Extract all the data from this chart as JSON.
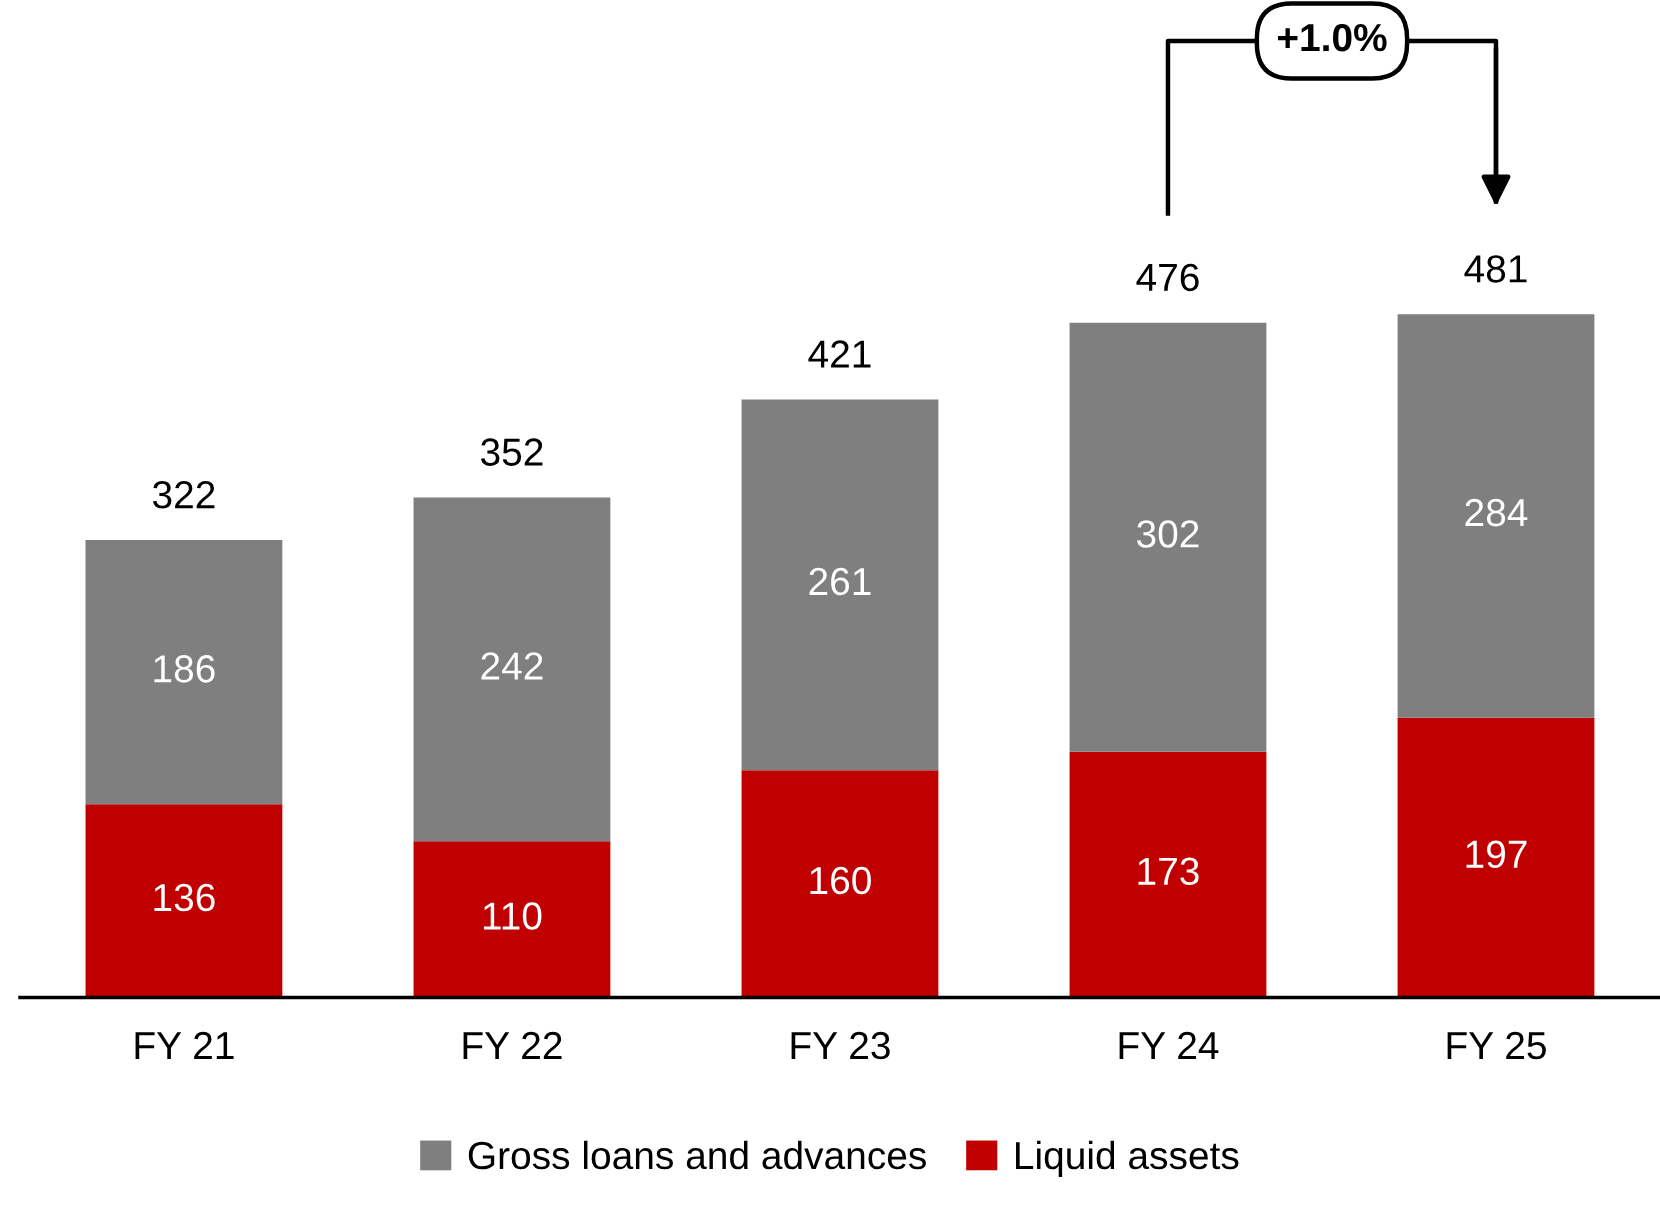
{
  "chart_data": {
    "type": "bar",
    "stacked": true,
    "categories": [
      "FY 21",
      "FY 22",
      "FY 23",
      "FY 24",
      "FY 25"
    ],
    "series": [
      {
        "name": "Liquid assets",
        "color": "#c00000",
        "values": [
          136,
          110,
          160,
          173,
          197
        ]
      },
      {
        "name": "Gross loans and advances",
        "color": "#7f7f7f",
        "values": [
          186,
          242,
          261,
          302,
          284
        ]
      }
    ],
    "data_labels": true,
    "totals": [
      "322",
      "352",
      "421",
      "476",
      "481"
    ],
    "annotations": [
      "+1.0%"
    ],
    "legend": "bottom",
    "grid": false
  }
}
